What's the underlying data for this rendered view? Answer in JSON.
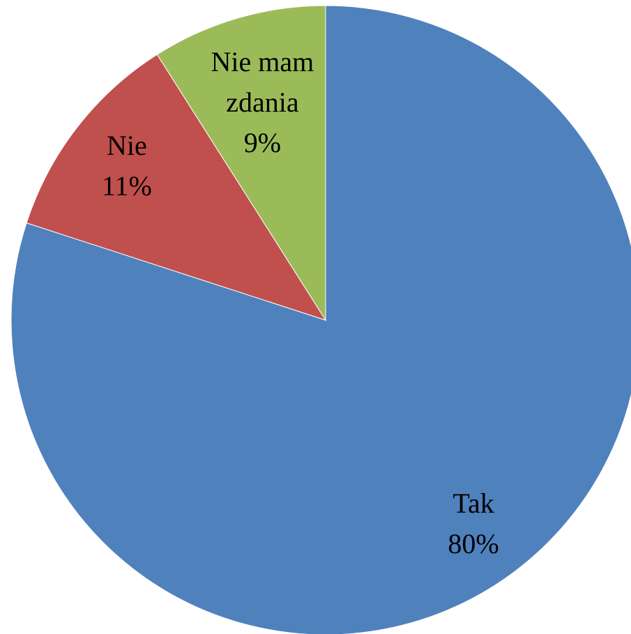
{
  "chart_data": {
    "type": "pie",
    "categories": [
      "Tak",
      "Nie",
      "Nie mam zdania"
    ],
    "values": [
      80,
      11,
      9
    ],
    "value_labels": [
      "80%",
      "11%",
      "9%"
    ],
    "colors": [
      "#4f81bd",
      "#c0504d",
      "#9bbb59"
    ]
  }
}
